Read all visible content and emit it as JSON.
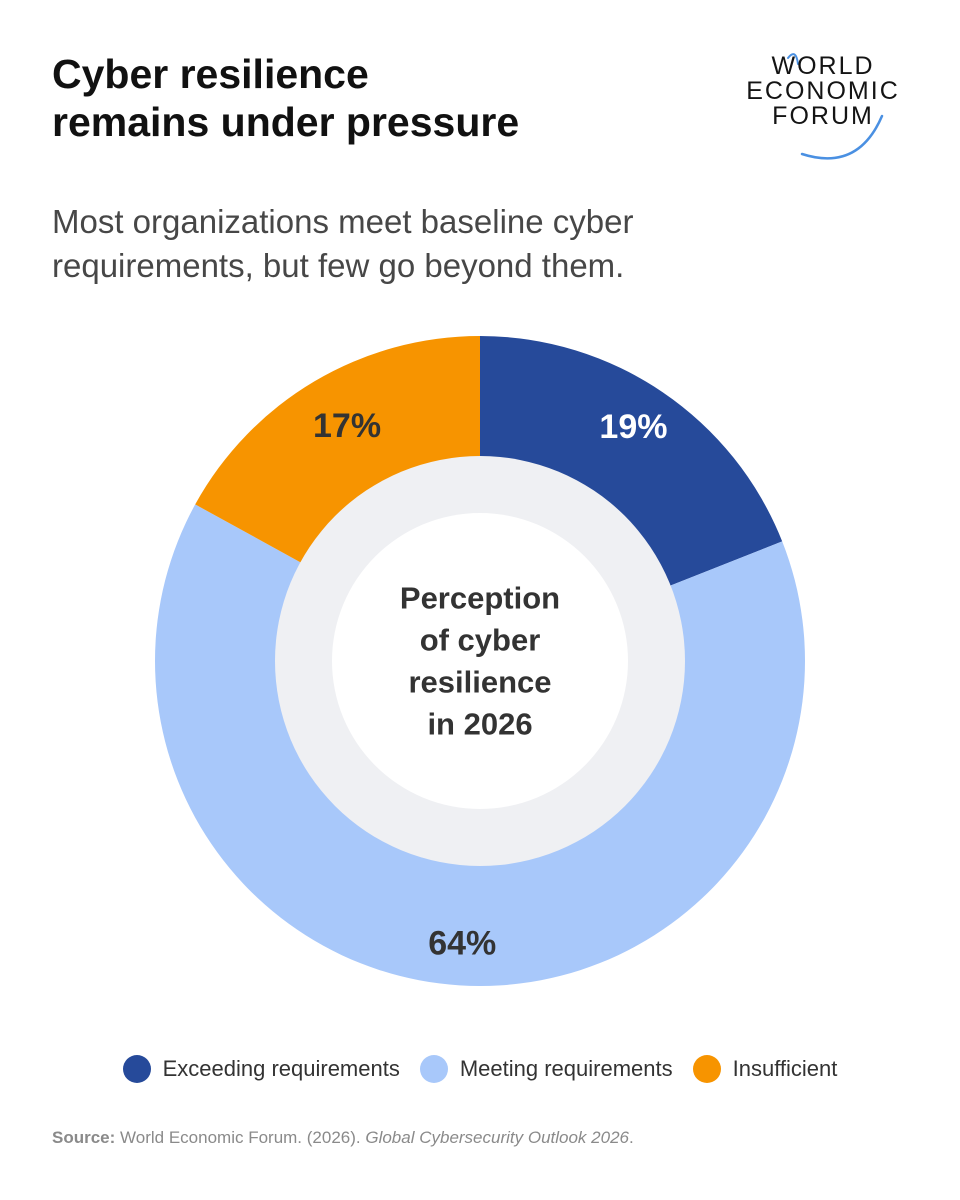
{
  "header": {
    "title_line1": "Cyber resilience",
    "title_line2": "remains under pressure",
    "subtitle_line1": "Most organizations meet baseline cyber",
    "subtitle_line2": "requirements, but few go beyond them."
  },
  "logo": {
    "line1": "WORLD",
    "line2": "ECONOMIC",
    "line3": "FORUM",
    "accent_color": "#4a90e2"
  },
  "chart_data": {
    "type": "pie",
    "variant": "donut",
    "center_label": [
      "Perception",
      "of cyber",
      "resilience",
      "in 2026"
    ],
    "categories": [
      "Exceeding requirements",
      "Meeting requirements",
      "Insufficient"
    ],
    "values": [
      19,
      64,
      17
    ],
    "value_labels": [
      "19%",
      "64%",
      "17%"
    ],
    "colors": [
      "#264a9a",
      "#a8c8fa",
      "#f79400"
    ],
    "label_colors": [
      "#ffffff",
      "#333333",
      "#333333"
    ],
    "start": "12 o'clock, clockwise",
    "legend_position": "bottom-center"
  },
  "footer": {
    "source_label": "Source:",
    "source_text": " World Economic Forum. (2026). ",
    "source_title": "Global Cybersecurity Outlook 2026",
    "source_end": "."
  }
}
